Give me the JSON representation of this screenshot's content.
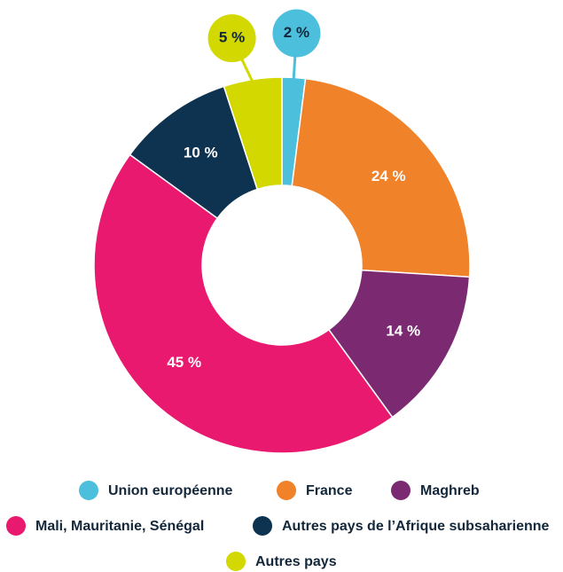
{
  "chart_data": {
    "type": "donut",
    "categories": [
      "Union européenne",
      "France",
      "Maghreb",
      "Mali, Mauritanie, Sénégal",
      "Autres pays de l’Afrique subsaharienne",
      "Autres pays"
    ],
    "values": [
      2,
      24,
      14,
      45,
      10,
      5
    ],
    "value_labels": [
      "2 %",
      "24 %",
      "14 %",
      "45 %",
      "10 %",
      "5 %"
    ],
    "colors": [
      "#4bbfdc",
      "#f0822a",
      "#7b2a72",
      "#e8196e",
      "#0d3350",
      "#d2d800"
    ]
  }
}
